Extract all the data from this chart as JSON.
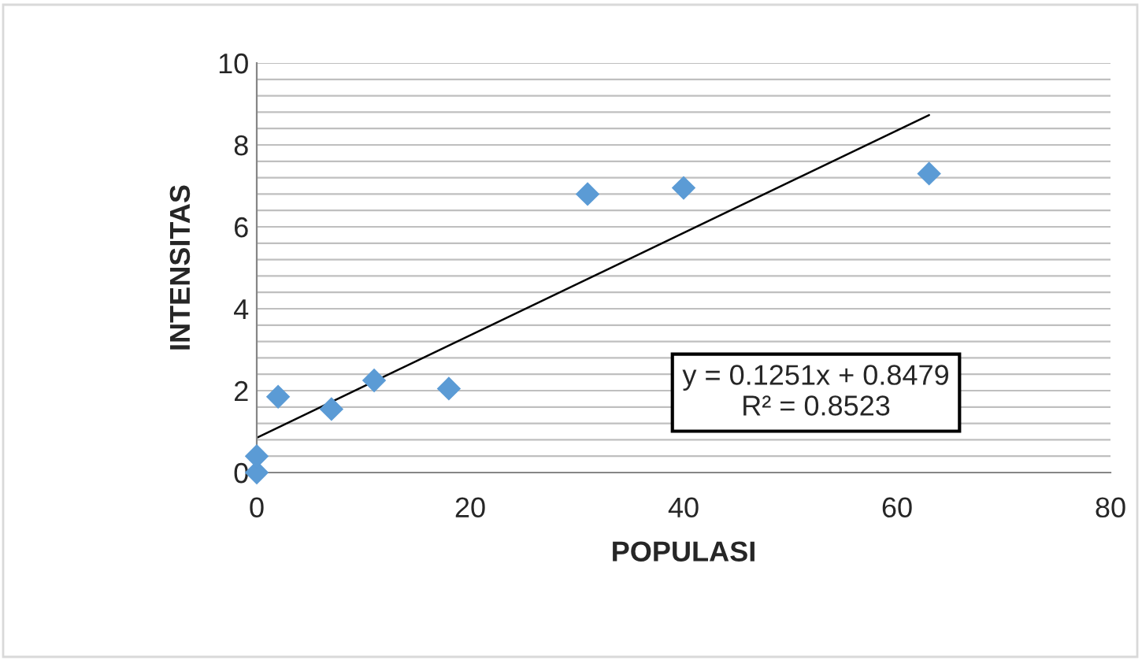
{
  "chart_data": {
    "type": "scatter",
    "xlabel": "POPULASI",
    "ylabel": "INTENSITAS",
    "series": [
      {
        "color": "#5b9bd5",
        "marker": "diamond",
        "x": [
          0,
          0,
          2,
          7,
          11,
          18,
          31,
          40,
          63
        ],
        "values": [
          0,
          0.4,
          1.85,
          1.55,
          2.25,
          2.05,
          6.8,
          6.95,
          7.3
        ]
      },
      {
        "type": "line",
        "color": "#000000",
        "marker": "none",
        "line_style": "solid",
        "x": [
          0,
          63
        ],
        "values": [
          0.85,
          8.73
        ]
      }
    ],
    "xlim": [
      0,
      80
    ],
    "xticks": [
      0,
      20,
      40,
      60,
      80
    ],
    "ylim": [
      0,
      10
    ],
    "yticks": [
      0,
      {
        "value": 0.4,
        "label": null
      },
      {
        "value": 0.8,
        "label": null
      },
      {
        "value": 1.2,
        "label": null
      },
      {
        "value": 1.6,
        "label": null
      },
      2,
      {
        "value": 2.4,
        "label": null
      },
      {
        "value": 2.8,
        "label": null
      },
      {
        "value": 3.2,
        "label": null
      },
      {
        "value": 3.6,
        "label": null
      },
      4,
      {
        "value": 4.4,
        "label": null
      },
      {
        "value": 4.8,
        "label": null
      },
      {
        "value": 5.2,
        "label": null
      },
      {
        "value": 5.6,
        "label": null
      },
      6,
      {
        "value": 6.4,
        "label": null
      },
      {
        "value": 6.8,
        "label": null
      },
      {
        "value": 7.2,
        "label": null
      },
      {
        "value": 7.6,
        "label": null
      },
      8,
      {
        "value": 8.4,
        "label": null
      },
      {
        "value": 8.8,
        "label": null
      },
      {
        "value": 9.2,
        "label": null
      },
      {
        "value": 9.6,
        "label": null
      },
      10
    ],
    "grid": "y",
    "legend": false,
    "annotations": [
      "y = 0.1251x + 0.8479\nR² = 0.8523"
    ]
  }
}
